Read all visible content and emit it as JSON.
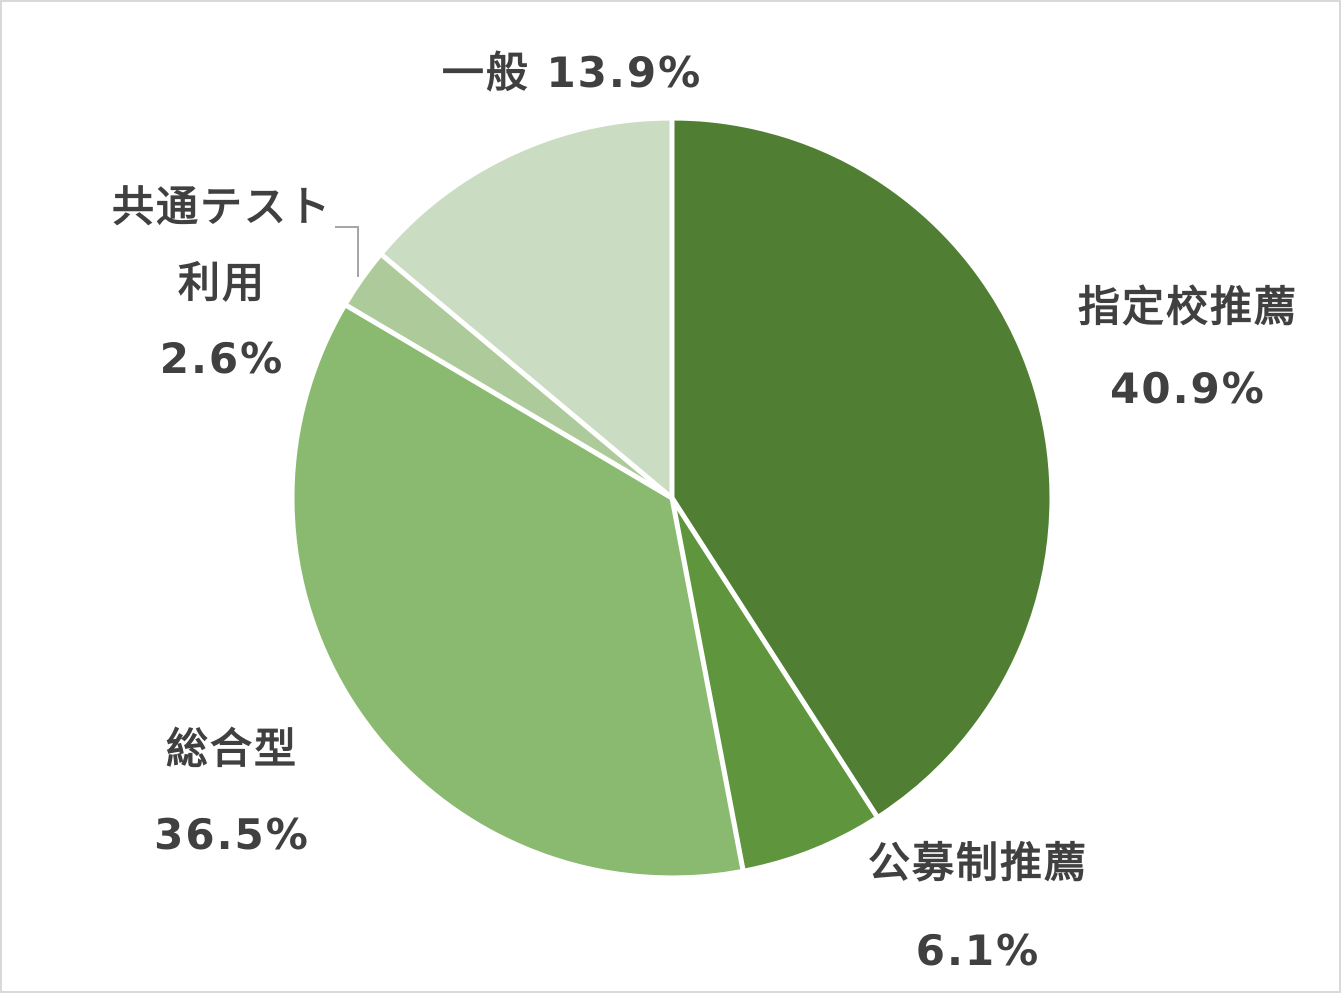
{
  "chart_data": {
    "type": "pie",
    "slices": [
      {
        "label": "指定校推薦",
        "value": 40.9,
        "value_label": "40.9%",
        "color": "#507e33"
      },
      {
        "label": "公募制推薦",
        "value": 6.1,
        "value_label": "6.1%",
        "color": "#5f953c"
      },
      {
        "label": "総合型",
        "value": 36.5,
        "value_label": "36.5%",
        "color": "#8aba70"
      },
      {
        "label_line1": "共通テスト",
        "label_line2": "利用",
        "value": 2.6,
        "value_label": "2.6%",
        "color": "#adcb9a"
      },
      {
        "label": "一般",
        "value": 13.9,
        "value_label": "13.9%",
        "color": "#cadcc2"
      }
    ],
    "start": "12 o'clock",
    "direction": "clockwise",
    "legend": "none"
  }
}
